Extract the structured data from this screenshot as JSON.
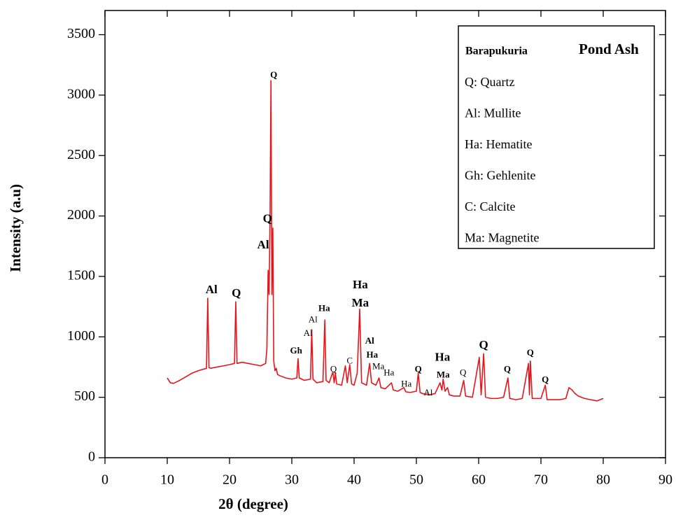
{
  "chart_data": {
    "type": "line",
    "xlabel": "2θ (degree)",
    "ylabel": "Intensity (a.u)",
    "xlim": [
      0,
      90
    ],
    "xticks": [
      0,
      10,
      20,
      30,
      40,
      50,
      60,
      70,
      80,
      90
    ],
    "ylim": [
      0,
      3700
    ],
    "yticks": [
      0,
      500,
      1000,
      1500,
      2000,
      2500,
      3000,
      3500
    ],
    "series": [
      {
        "color": "#e8141b",
        "x": [
          10,
          10.5,
          11,
          12,
          13,
          14,
          15,
          16,
          16.3,
          16.5,
          16.7,
          17,
          18,
          19,
          20,
          20.8,
          21,
          21.2,
          22,
          23,
          24,
          25,
          25.8,
          26,
          26.2,
          26.35,
          26.5,
          26.65,
          26.8,
          26.95,
          27.1,
          27.3,
          27.5,
          27.7,
          28,
          29,
          30,
          30.8,
          31,
          31.2,
          32,
          33,
          33.2,
          33.4,
          34,
          35,
          35.3,
          35.5,
          36,
          36.6,
          36.8,
          37,
          37.2,
          38,
          38.6,
          38.9,
          39.3,
          39.6,
          40,
          40.5,
          40.9,
          41.2,
          42,
          42.5,
          42.8,
          43.5,
          44,
          44.3,
          45,
          46,
          46.3,
          47,
          48,
          48.3,
          49,
          50,
          50.3,
          50.6,
          51,
          52,
          53,
          53.8,
          54.1,
          54.3,
          54.6,
          55,
          55.3,
          56,
          57,
          57.6,
          57.9,
          59,
          60.1,
          60.4,
          60.8,
          61.1,
          62,
          63,
          64,
          64.7,
          65,
          66,
          67,
          68,
          68.15,
          68.3,
          68.6,
          69,
          70,
          70.7,
          71,
          72,
          73,
          74,
          74.5,
          75,
          75.5,
          76,
          77,
          78,
          79,
          80
        ],
        "values": [
          660,
          620,
          615,
          640,
          670,
          700,
          720,
          735,
          740,
          1320,
          745,
          740,
          750,
          760,
          770,
          780,
          1290,
          780,
          790,
          780,
          770,
          760,
          780,
          900,
          1550,
          1350,
          1950,
          3120,
          1350,
          1900,
          800,
          720,
          740,
          690,
          680,
          660,
          650,
          660,
          820,
          660,
          640,
          650,
          1060,
          650,
          620,
          630,
          1140,
          640,
          620,
          710,
          620,
          700,
          610,
          600,
          760,
          620,
          770,
          610,
          600,
          700,
          1230,
          620,
          600,
          780,
          620,
          600,
          660,
          580,
          570,
          620,
          560,
          550,
          580,
          545,
          540,
          550,
          700,
          540,
          530,
          520,
          530,
          620,
          560,
          650,
          550,
          580,
          520,
          510,
          510,
          640,
          510,
          500,
          830,
          520,
          860,
          500,
          490,
          490,
          500,
          660,
          490,
          480,
          490,
          780,
          520,
          800,
          490,
          490,
          490,
          600,
          480,
          480,
          480,
          490,
          580,
          560,
          530,
          510,
          490,
          480,
          470,
          490
        ]
      }
    ],
    "annotations": [
      {
        "text": "Al",
        "x": 17.1,
        "y": 1383,
        "weight": "bold",
        "size": "large"
      },
      {
        "text": "Q",
        "x": 21.1,
        "y": 1354,
        "weight": "bold",
        "size": "large"
      },
      {
        "text": "Q",
        "x": 26.1,
        "y": 1970,
        "weight": "bold",
        "size": "large"
      },
      {
        "text": "Al",
        "x": 25.4,
        "y": 1753,
        "weight": "bold",
        "size": "large"
      },
      {
        "text": "Q",
        "x": 27.1,
        "y": 3160,
        "weight": "bold",
        "size": "small"
      },
      {
        "text": "Gh",
        "x": 30.7,
        "y": 879,
        "weight": "bold",
        "size": "small"
      },
      {
        "text": "Al",
        "x": 33.4,
        "y": 1137,
        "weight": "normal",
        "size": "small"
      },
      {
        "text": "Al",
        "x": 32.6,
        "y": 1026,
        "weight": "normal",
        "size": "small"
      },
      {
        "text": "Ha",
        "x": 35.2,
        "y": 1231,
        "weight": "bold",
        "size": "small"
      },
      {
        "text": "Q",
        "x": 36.7,
        "y": 727,
        "weight": "normal",
        "size": "small"
      },
      {
        "text": "C",
        "x": 39.3,
        "y": 797,
        "weight": "normal",
        "size": "small"
      },
      {
        "text": "Ha",
        "x": 41,
        "y": 1424,
        "weight": "bold",
        "size": "large"
      },
      {
        "text": "Ma",
        "x": 41,
        "y": 1272,
        "weight": "bold",
        "size": "large"
      },
      {
        "text": "Al",
        "x": 42.5,
        "y": 961,
        "weight": "bold",
        "size": "small"
      },
      {
        "text": "Ha",
        "x": 42.9,
        "y": 844,
        "weight": "bold",
        "size": "small"
      },
      {
        "text": "Ma",
        "x": 43.9,
        "y": 750,
        "weight": "normal",
        "size": "small"
      },
      {
        "text": "Ha",
        "x": 45.6,
        "y": 697,
        "weight": "normal",
        "size": "small"
      },
      {
        "text": "Ha",
        "x": 48.4,
        "y": 604,
        "weight": "normal",
        "size": "small"
      },
      {
        "text": "Q",
        "x": 50.3,
        "y": 727,
        "weight": "bold",
        "size": "small"
      },
      {
        "text": "Al",
        "x": 51.9,
        "y": 533,
        "weight": "normal",
        "size": "small"
      },
      {
        "text": "Ha",
        "x": 54.2,
        "y": 826,
        "weight": "bold",
        "size": "large"
      },
      {
        "text": "Ma",
        "x": 54.3,
        "y": 680,
        "weight": "bold",
        "size": "small"
      },
      {
        "text": "Q",
        "x": 57.5,
        "y": 697,
        "weight": "normal",
        "size": "small"
      },
      {
        "text": "Q",
        "x": 60.8,
        "y": 926,
        "weight": "bold",
        "size": "large"
      },
      {
        "text": "Q",
        "x": 64.6,
        "y": 727,
        "weight": "bold",
        "size": "small"
      },
      {
        "text": "Q",
        "x": 68.3,
        "y": 862,
        "weight": "bold",
        "size": "small"
      },
      {
        "text": "Q",
        "x": 70.7,
        "y": 639,
        "weight": "bold",
        "size": "small"
      }
    ],
    "legend": {
      "title_left": "Barapukuria",
      "title_right": "Pond Ash",
      "items": [
        "Q: Quartz",
        "Al: Mullite",
        "Ha: Hematite",
        "Gh: Gehlenite",
        "C: Calcite",
        "Ma: Magnetite"
      ]
    }
  }
}
